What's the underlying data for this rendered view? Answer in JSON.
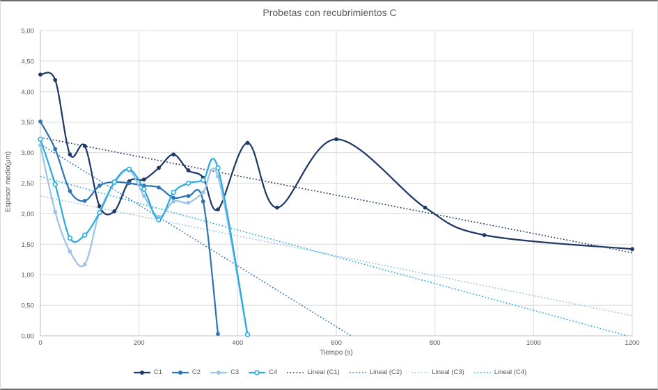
{
  "title": "Probetas con recubrimientos C",
  "axes": {
    "x_label": "Tiempo (s)",
    "y_label": "Espesor medio(μm)",
    "x_tick_labels": [
      "0",
      "200",
      "400",
      "600",
      "800",
      "1000",
      "1200"
    ],
    "y_tick_labels": [
      "0,00",
      "0,50",
      "1,00",
      "1,50",
      "2,00",
      "2,50",
      "3,00",
      "3,50",
      "4,00",
      "4,50",
      "5,00"
    ]
  },
  "colors": {
    "c1": "#1f3864",
    "c2": "#2e75b6",
    "c3": "#9dc3e6",
    "c4": "#29abe2",
    "gridline": "#d9d9d9",
    "axis_line": "#bfbfbf",
    "text": "#595959"
  },
  "chart_data": {
    "type": "line",
    "title": "Probetas con recubrimientos C",
    "xlabel": "Tiempo (s)",
    "ylabel": "Espesor medio(μm)",
    "xlim": [
      0,
      1200
    ],
    "ylim": [
      0,
      5
    ],
    "x_ticks": [
      0,
      200,
      400,
      600,
      800,
      1000,
      1200
    ],
    "y_ticks": [
      0,
      0.5,
      1,
      1.5,
      2,
      2.5,
      3,
      3.5,
      4,
      4.5,
      5
    ],
    "grid": true,
    "legend_position": "bottom",
    "series": [
      {
        "name": "C1",
        "color": "#1f3864",
        "marker": "filled-circle",
        "smooth": true,
        "points": [
          [
            0,
            4.28
          ],
          [
            30,
            4.19
          ],
          [
            60,
            2.97
          ],
          [
            90,
            3.11
          ],
          [
            120,
            2.12
          ],
          [
            150,
            2.04
          ],
          [
            180,
            2.53
          ],
          [
            210,
            2.56
          ],
          [
            240,
            2.75
          ],
          [
            270,
            2.97
          ],
          [
            300,
            2.71
          ],
          [
            330,
            2.59
          ],
          [
            360,
            2.07
          ],
          [
            420,
            3.16
          ],
          [
            480,
            2.1
          ],
          [
            600,
            3.22
          ],
          [
            780,
            2.1
          ],
          [
            900,
            1.65
          ],
          [
            1200,
            1.42
          ]
        ]
      },
      {
        "name": "C2",
        "color": "#2e75b6",
        "marker": "filled-circle",
        "smooth": true,
        "points": [
          [
            0,
            3.51
          ],
          [
            30,
            3.06
          ],
          [
            60,
            2.37
          ],
          [
            90,
            2.21
          ],
          [
            120,
            2.46
          ],
          [
            150,
            2.52
          ],
          [
            180,
            2.5
          ],
          [
            210,
            2.46
          ],
          [
            240,
            2.43
          ],
          [
            270,
            2.26
          ],
          [
            300,
            2.29
          ],
          [
            330,
            2.2
          ],
          [
            360,
            0.03
          ]
        ]
      },
      {
        "name": "C3",
        "color": "#9dc3e6",
        "marker": "filled-circle",
        "smooth": true,
        "points": [
          [
            0,
            3.12
          ],
          [
            30,
            2.03
          ],
          [
            60,
            1.38
          ],
          [
            90,
            1.17
          ],
          [
            120,
            2.03
          ],
          [
            150,
            2.5
          ],
          [
            180,
            2.71
          ],
          [
            210,
            2.29
          ],
          [
            240,
            1.95
          ],
          [
            270,
            2.2
          ],
          [
            300,
            2.18
          ],
          [
            330,
            2.35
          ],
          [
            360,
            2.61
          ],
          [
            420,
            0.01
          ]
        ]
      },
      {
        "name": "C4",
        "color": "#29abe2",
        "marker": "open-circle",
        "smooth": true,
        "points": [
          [
            0,
            3.22
          ],
          [
            30,
            2.48
          ],
          [
            60,
            1.6
          ],
          [
            90,
            1.65
          ],
          [
            120,
            2.02
          ],
          [
            150,
            2.52
          ],
          [
            180,
            2.73
          ],
          [
            210,
            2.4
          ],
          [
            240,
            1.9
          ],
          [
            270,
            2.35
          ],
          [
            300,
            2.5
          ],
          [
            330,
            2.55
          ],
          [
            360,
            2.75
          ],
          [
            420,
            0.02
          ]
        ]
      }
    ],
    "trendlines": [
      {
        "name": "Lineal (C1)",
        "color": "#1f3864",
        "from": [
          0,
          3.25
        ],
        "to": [
          1200,
          1.36
        ]
      },
      {
        "name": "Lineal (C2)",
        "color": "#2e75b6",
        "from": [
          0,
          3.14
        ],
        "to": [
          630,
          0.0
        ]
      },
      {
        "name": "Lineal (C3)",
        "color": "#9dc3e6",
        "from": [
          0,
          2.29
        ],
        "to": [
          1200,
          0.33
        ]
      },
      {
        "name": "Lineal (C4)",
        "color": "#29abe2",
        "from": [
          0,
          2.61
        ],
        "to": [
          1190,
          0.0
        ]
      }
    ]
  },
  "legend": {
    "items": [
      {
        "label": "C1",
        "kind": "solid",
        "color": "#1f3864",
        "marker": "filled-circle"
      },
      {
        "label": "C2",
        "kind": "solid",
        "color": "#2e75b6",
        "marker": "filled-circle"
      },
      {
        "label": "C3",
        "kind": "solid",
        "color": "#9dc3e6",
        "marker": "filled-circle"
      },
      {
        "label": "C4",
        "kind": "solid",
        "color": "#29abe2",
        "marker": "open-circle"
      },
      {
        "label": "Lineal (C1)",
        "kind": "dotted",
        "color": "#1f3864"
      },
      {
        "label": "Lineal (C2)",
        "kind": "dotted",
        "color": "#2e75b6"
      },
      {
        "label": "Lineal (C3)",
        "kind": "dotted",
        "color": "#9dc3e6"
      },
      {
        "label": "Lineal (C4)",
        "kind": "dotted",
        "color": "#29abe2"
      }
    ]
  }
}
